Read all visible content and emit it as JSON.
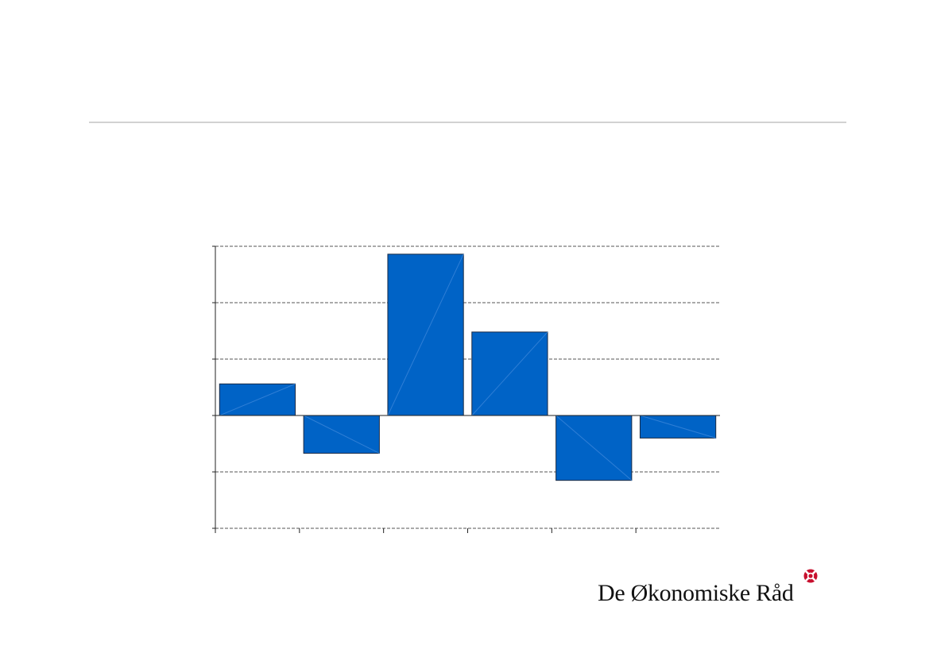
{
  "brand": {
    "name": "De Økonomiske Råd",
    "logo_icon": "red-cross-circle-icon",
    "logo_color": "#c8102e"
  },
  "colors": {
    "bar_fill": "#0063c6",
    "bar_stroke": "#1a2a44",
    "rule": "#d2d2d2",
    "grid": "#555555"
  },
  "chart_data": {
    "type": "bar",
    "categories": [
      "",
      "",
      "",
      "",
      "",
      ""
    ],
    "values": [
      0.56,
      -0.67,
      2.86,
      1.48,
      -1.15,
      -0.4
    ],
    "ylim": [
      -2,
      3
    ],
    "yticks": [
      -2,
      -1,
      0,
      1,
      2,
      3
    ],
    "grid": true,
    "grid_style": "dashed",
    "title": "",
    "xlabel": "",
    "ylabel": "",
    "tick_labels_visible": false,
    "legend": "none"
  }
}
